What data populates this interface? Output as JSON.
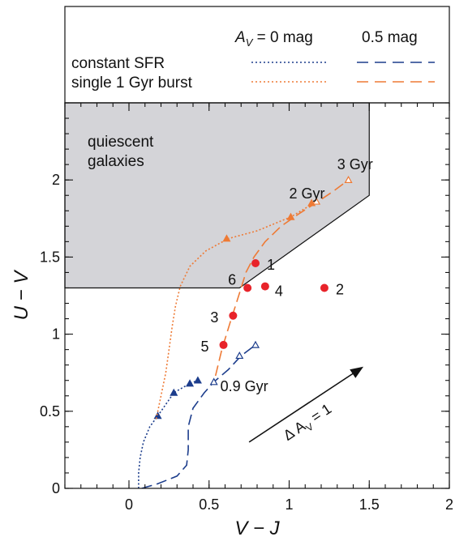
{
  "chart_data": {
    "type": "scatter",
    "xlabel": "V − J",
    "ylabel": "U − V",
    "xlim": [
      -0.4,
      2.0
    ],
    "ylim": [
      0,
      2.5
    ],
    "xticks": [
      0,
      0.5,
      1,
      1.5,
      2
    ],
    "yticks": [
      0,
      0.5,
      1,
      1.5,
      2
    ],
    "xtick_labels": [
      "0",
      "0.5",
      "1",
      "1.5",
      "2"
    ],
    "ytick_labels": [
      "0",
      "0.5",
      "1",
      "1.5",
      "2"
    ],
    "region": {
      "label_lines": [
        "quiescent",
        "galaxies"
      ],
      "vertices": [
        [
          -0.4,
          1.3
        ],
        [
          0.69,
          1.3
        ],
        [
          1.5,
          1.9
        ],
        [
          1.5,
          2.5
        ],
        [
          -0.4,
          2.5
        ]
      ],
      "color": "#d4d4d8"
    },
    "legend": {
      "header_av0": "AV = 0 mag",
      "header_av0_main": "A",
      "header_av0_sub": "V",
      "header_av0_rest": " = 0 mag",
      "header_av05": "0.5 mag",
      "rows": [
        "constant SFR",
        "single 1 Gyr burst"
      ]
    },
    "series": [
      {
        "name": "constant SFR",
        "av": "0 mag",
        "color": "#1c3d8c",
        "style": "dotted",
        "x": [
          0.06,
          0.06,
          0.07,
          0.09,
          0.13,
          0.18,
          0.28,
          0.38,
          0.43
        ],
        "y": [
          0.0,
          0.1,
          0.2,
          0.3,
          0.4,
          0.47,
          0.62,
          0.68,
          0.7
        ],
        "markers": [
          [
            0.18,
            0.47
          ],
          [
            0.28,
            0.62
          ],
          [
            0.38,
            0.68
          ],
          [
            0.43,
            0.7
          ]
        ],
        "marker": "filled-triangle"
      },
      {
        "name": "constant SFR",
        "av": "0.5 mag",
        "color": "#1c3d8c",
        "style": "dashed",
        "x": [
          0.08,
          0.18,
          0.3,
          0.36,
          0.37,
          0.37,
          0.4,
          0.47,
          0.53,
          0.62,
          0.7,
          0.79
        ],
        "y": [
          0.0,
          0.03,
          0.08,
          0.15,
          0.25,
          0.4,
          0.52,
          0.62,
          0.69,
          0.77,
          0.86,
          0.93
        ],
        "markers": [
          [
            0.53,
            0.69
          ],
          [
            0.69,
            0.86
          ],
          [
            0.79,
            0.93
          ]
        ],
        "marker": "open-triangle"
      },
      {
        "name": "single 1 Gyr burst",
        "av": "0 mag",
        "color": "#ee7a35",
        "style": "dotted",
        "x": [
          0.17,
          0.2,
          0.23,
          0.25,
          0.27,
          0.29,
          0.32,
          0.38,
          0.48,
          0.62,
          0.8,
          1.01,
          1.17
        ],
        "y": [
          0.45,
          0.6,
          0.75,
          0.9,
          1.05,
          1.18,
          1.31,
          1.44,
          1.54,
          1.62,
          1.67,
          1.76,
          1.86
        ],
        "markers": [
          [
            0.61,
            1.62
          ],
          [
            1.01,
            1.76
          ],
          [
            1.14,
            1.85
          ]
        ],
        "marker": "filled-triangle"
      },
      {
        "name": "single 1 Gyr burst",
        "av": "0.5 mag",
        "color": "#ee7a35",
        "style": "dashed",
        "x": [
          0.54,
          0.58,
          0.63,
          0.67,
          0.7,
          0.73,
          0.78,
          0.85,
          0.95,
          1.06,
          1.18,
          1.28,
          1.37
        ],
        "y": [
          0.73,
          0.9,
          1.07,
          1.2,
          1.3,
          1.4,
          1.5,
          1.6,
          1.7,
          1.78,
          1.86,
          1.93,
          2.0
        ],
        "markers": [
          [
            1.17,
            1.86
          ],
          [
            1.37,
            2.0
          ]
        ],
        "marker": "open-triangle"
      }
    ],
    "points": {
      "color": "#e8232a",
      "items": [
        {
          "label": "1",
          "x": 0.79,
          "y": 1.46
        },
        {
          "label": "2",
          "x": 1.22,
          "y": 1.3
        },
        {
          "label": "3",
          "x": 0.65,
          "y": 1.12
        },
        {
          "label": "4",
          "x": 0.85,
          "y": 1.31
        },
        {
          "label": "5",
          "x": 0.59,
          "y": 0.93
        },
        {
          "label": "6",
          "x": 0.74,
          "y": 1.3
        }
      ]
    },
    "annotations": {
      "age_labels": [
        {
          "text": "3 Gyr",
          "x": 1.3,
          "y": 2.07
        },
        {
          "text": "2 Gyr",
          "x": 1.0,
          "y": 1.88
        },
        {
          "text": "0.9 Gyr",
          "x": 0.57,
          "y": 0.63
        }
      ],
      "dust_vector": {
        "from": [
          0.75,
          0.3
        ],
        "to": [
          1.45,
          0.78
        ],
        "label_main": "Δ A",
        "label_sub": "V",
        "label_rest": " = 1"
      }
    }
  }
}
